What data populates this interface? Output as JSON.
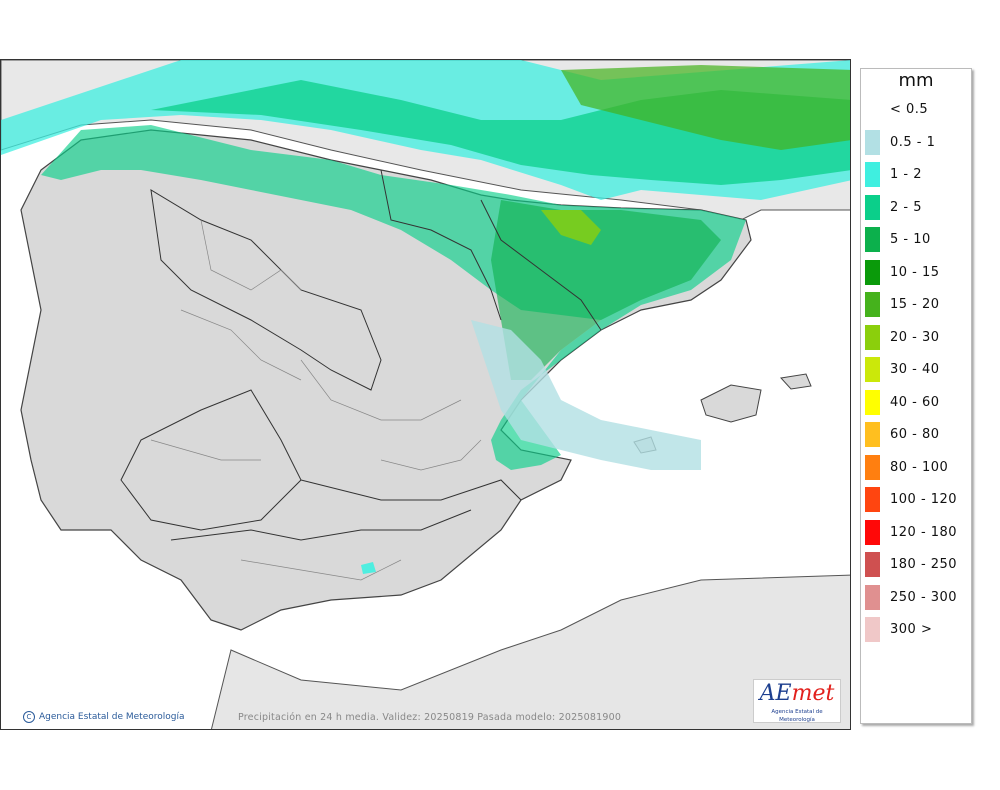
{
  "legend": {
    "unit": "mm",
    "items": [
      {
        "label": "< 0.5",
        "color": "#ffffff"
      },
      {
        "label": "0.5 - 1",
        "color": "#b2e0e4"
      },
      {
        "label": "1 - 2",
        "color": "#3fefe0"
      },
      {
        "label": "2 - 5",
        "color": "#0bcf8a"
      },
      {
        "label": "5 - 10",
        "color": "#0cb04c"
      },
      {
        "label": "10 - 15",
        "color": "#0a9a0a"
      },
      {
        "label": "15 - 20",
        "color": "#45b21c"
      },
      {
        "label": "20 - 30",
        "color": "#8bcf0c"
      },
      {
        "label": "30 - 40",
        "color": "#cbe80a"
      },
      {
        "label": "40 - 60",
        "color": "#ffff00"
      },
      {
        "label": "60 - 80",
        "color": "#ffbf1f"
      },
      {
        "label": "80 - 100",
        "color": "#ff7f10"
      },
      {
        "label": "100 - 120",
        "color": "#ff4510"
      },
      {
        "label": "120 - 180",
        "color": "#ff0808"
      },
      {
        "label": "180 - 250",
        "color": "#cf5050"
      },
      {
        "label": "250 - 300",
        "color": "#e09090"
      },
      {
        "label": "300 >",
        "color": "#f0c8c8"
      }
    ]
  },
  "map": {
    "credit": "Agencia Estatal de Meteorología",
    "footer": "Precipitación en 24 h media. Validez: 20250819 Pasada modelo: 2025081900",
    "logo_brand_a": "AE",
    "logo_brand_b": "met",
    "logo_sub": "Agencia Estatal de Meteorología"
  }
}
